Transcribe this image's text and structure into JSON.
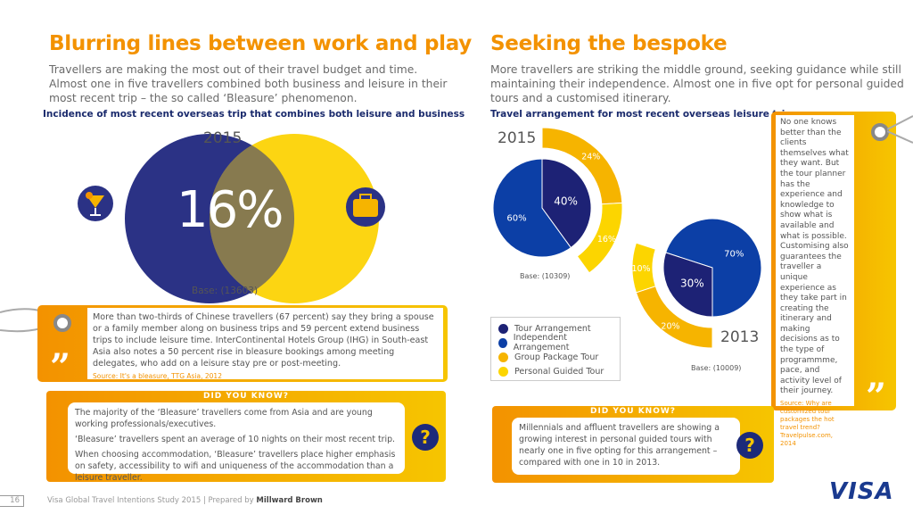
{
  "left": {
    "title": "Blurring lines between work and play",
    "subtitle": [
      "Travellers are making the most out of their travel budget and time.",
      "Almost one in five travellers combined both business and leisure in their",
      "most recent trip – the so called ‘Bleasure’ phenomenon."
    ],
    "chart_title": "Incidence of most recent overseas trip that combines both leisure and business",
    "year": "2015",
    "value": "16%",
    "base": "Base: (13603)",
    "quote": "More than two-thirds of Chinese travellers (67 percent) say they bring a spouse or a family member along on business trips and 59 percent extend business trips to include leisure time. InterContinental Hotels Group (IHG) in South-east Asia also notes a 50 percent rise in bleasure bookings among meeting delegates, who add on a leisure stay pre or post-meeting.",
    "quote_source": "Source: It's a bleasure, TTG Asia, 2012",
    "dyk_title": "DID YOU KNOW?",
    "dyk": [
      "The majority of the ‘Bleasure’ travellers come from Asia and are young working professionals/executives.",
      "‘Bleasure’ travellers spent an average of 10 nights on their most recent trip.",
      "When choosing accommodation, ‘Bleasure’ travellers place higher emphasis on safety, accessibility to wifi and uniqueness of the accommodation than a leisure traveller."
    ]
  },
  "right": {
    "title": "Seeking the bespoke",
    "subtitle": [
      "More travellers are striking the middle ground, seeking guidance while still",
      "maintaining their independence. Almost one in five opt for personal guided",
      "tours and a customised itinerary."
    ],
    "chart_title": "Travel arrangement for most recent overseas leisure trip",
    "quote": "No one knows better than the clients themselves what they want. But the tour planner has the experience and knowledge to show what is available and what is possible. Customising also guarantees the traveller a unique experience as they take part in creating the itinerary and making decisions as to the type of programmme, pace, and activity level of their journey.",
    "quote_source": "Source: Why are customized tour packages the hot travel trend? Travelpulse.com, 2014",
    "dyk_title": "DID YOU KNOW?",
    "dyk": "Millennials and affluent travellers are showing a growing interest in personal guided tours with nearly one in five opting for this arrangement – compared with one in 10 in 2013."
  },
  "question_mark": "?",
  "chart_data": [
    {
      "type": "venn",
      "title": "Incidence of most recent overseas trip that combines both leisure and business",
      "sets": [
        "Leisure",
        "Business"
      ],
      "overlap_value": 16,
      "year": "2015",
      "base": "Base: (13603)"
    },
    {
      "type": "pie",
      "title": "Travel arrangement for most recent overseas leisure trip",
      "legend": [
        "Tour Arrangement",
        "Independent Arrangement",
        "Group Package Tour",
        "Personal Guided Tour"
      ],
      "colors": {
        "tour": "#1d2275",
        "independent": "#0c3fa6",
        "group": "#f6b400",
        "personal": "#fcd500"
      },
      "years": [
        {
          "year": "2015",
          "tour": 40,
          "independent": 60,
          "group": 24,
          "personal": 16,
          "base": "Base: (10309)"
        },
        {
          "year": "2013",
          "tour": 30,
          "independent": 70,
          "group": 20,
          "personal": 10,
          "base": "Base: (10009)"
        }
      ]
    }
  ],
  "footer": {
    "page": "16",
    "text": "Visa Global Travel Intentions Study 2015 | Prepared by ",
    "bold": "Millward Brown",
    "logo": "VISA"
  }
}
